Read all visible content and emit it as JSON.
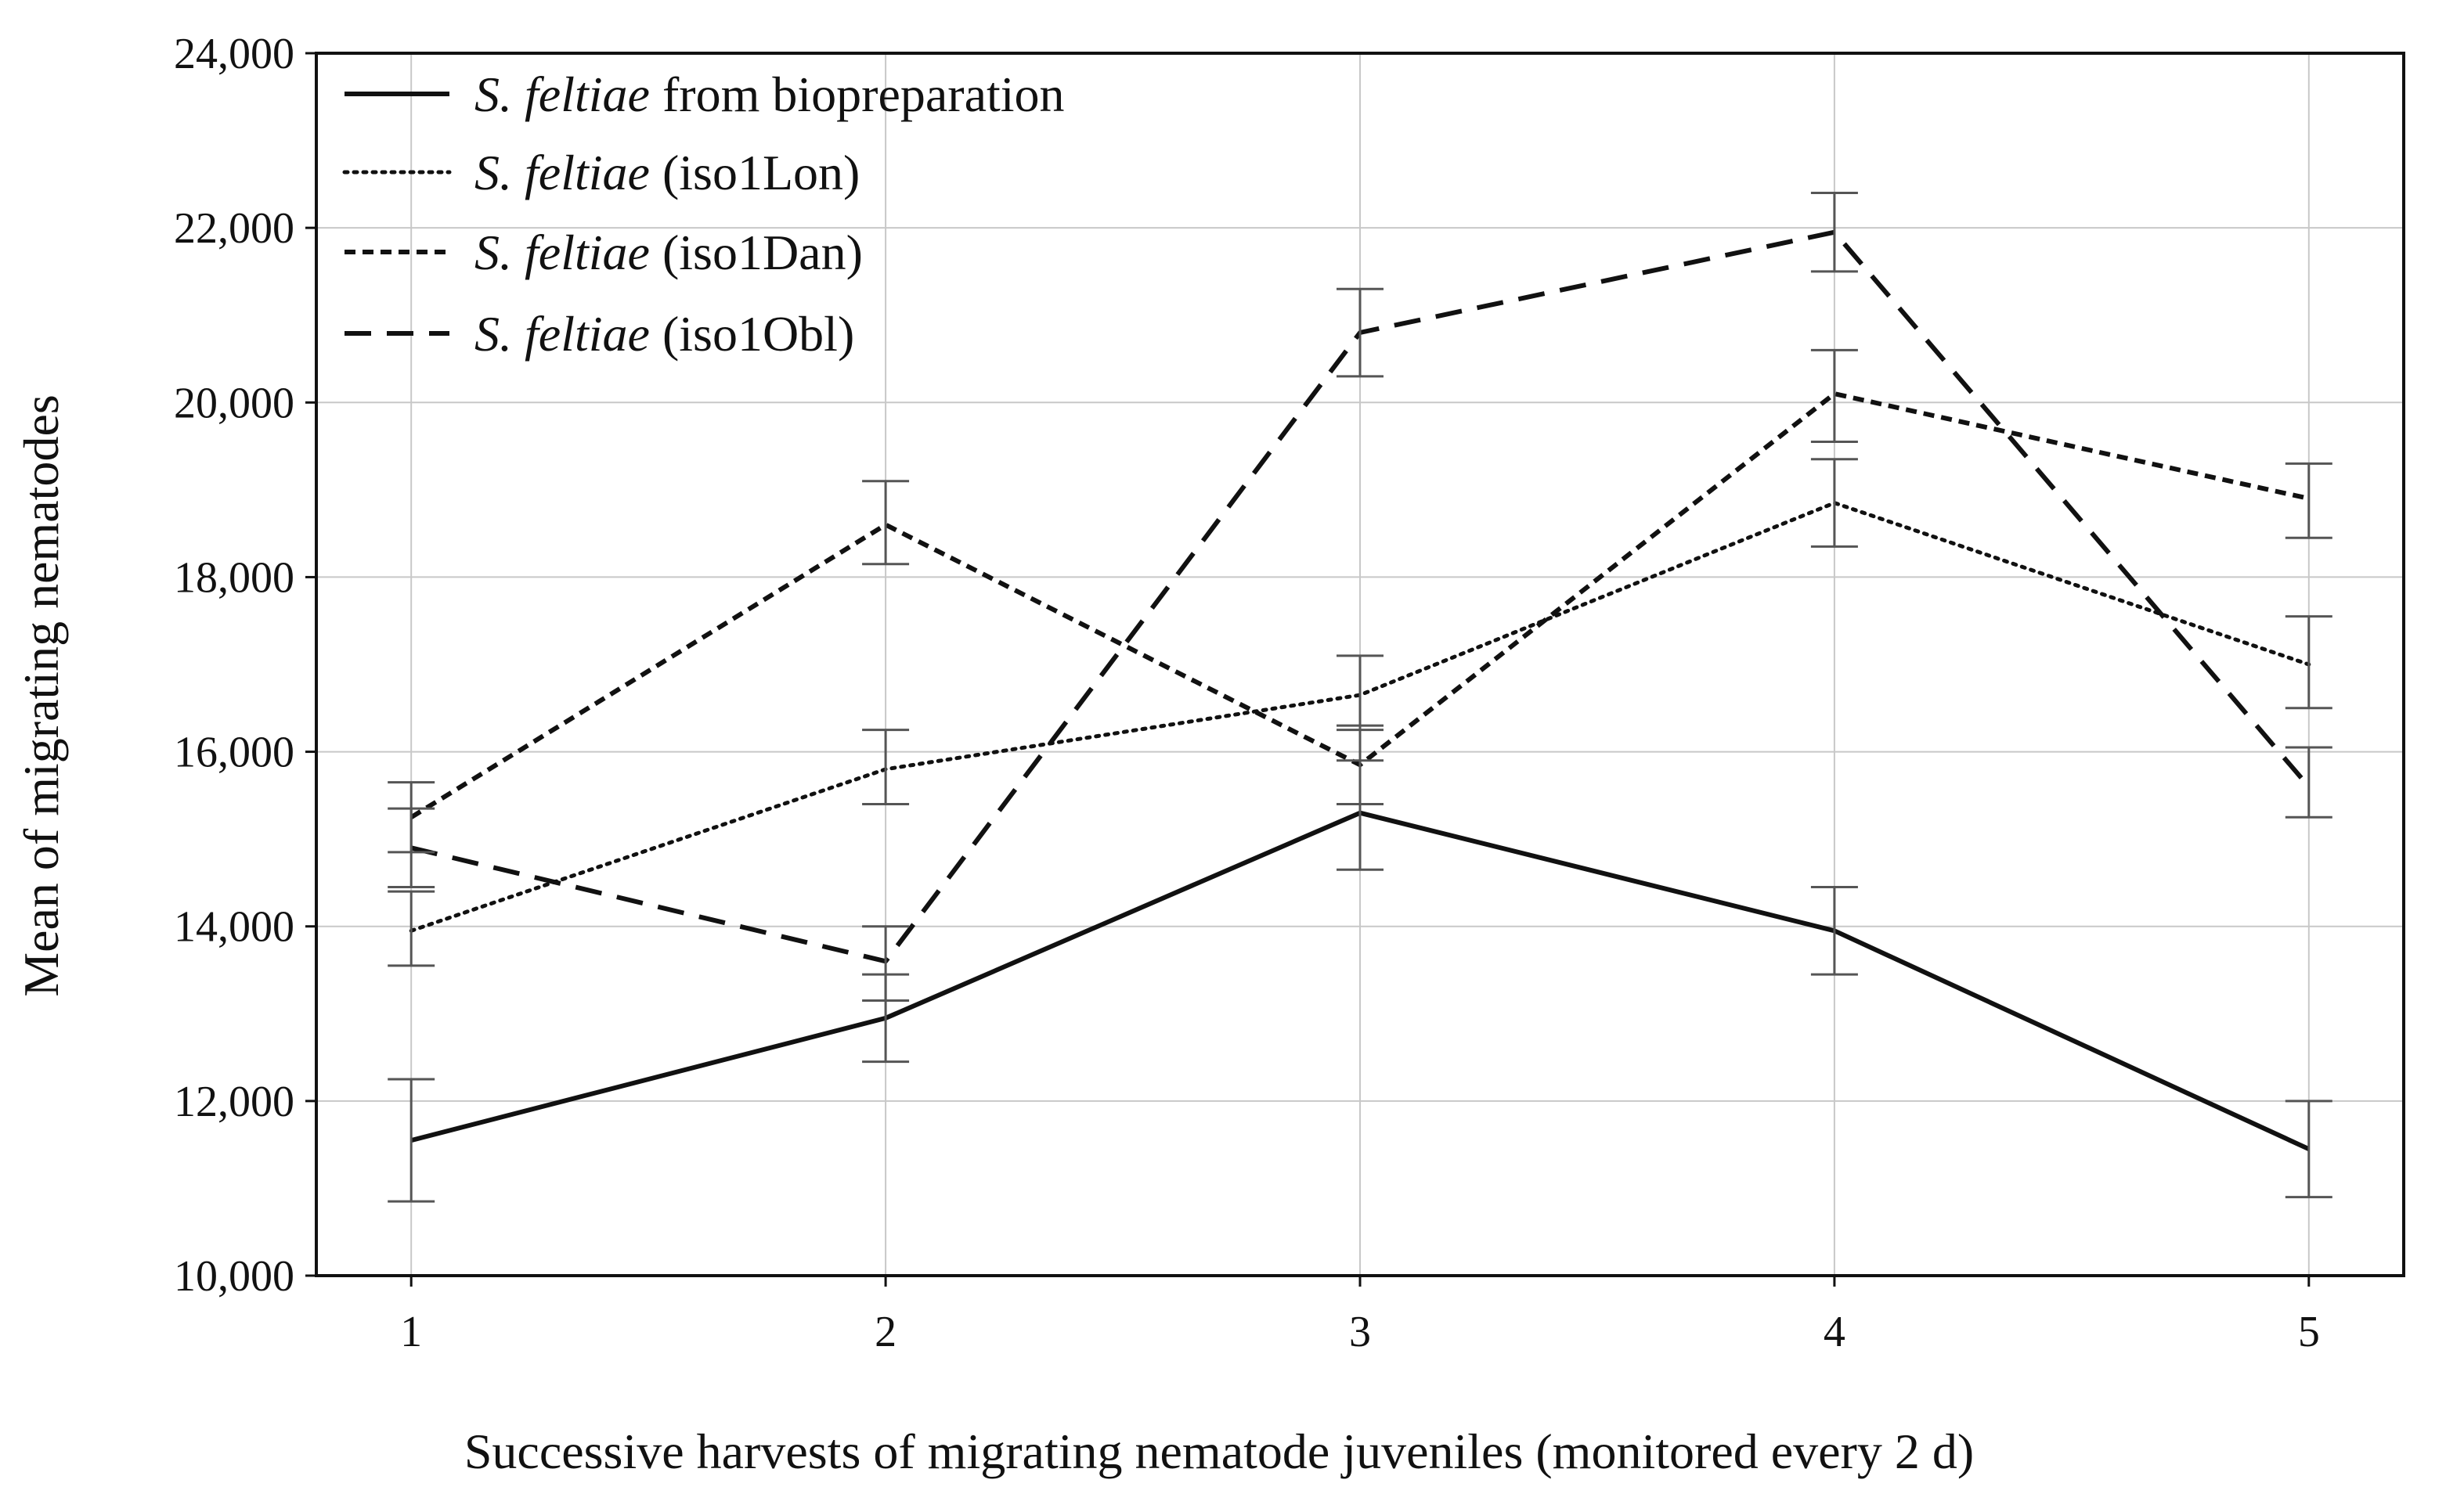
{
  "chart_data": {
    "type": "line",
    "title": "",
    "xlabel": "Successive harvests of migrating nematode juveniles (monitored every 2 d)",
    "ylabel": "Mean of migrating nematodes",
    "x": [
      1,
      2,
      3,
      4,
      5
    ],
    "x_tick_labels": [
      "1",
      "2",
      "3",
      "4",
      "5"
    ],
    "xlim": [
      0.8,
      5.2
    ],
    "ylim": [
      10000,
      24000
    ],
    "y_ticks": [
      10000,
      12000,
      14000,
      16000,
      18000,
      20000,
      22000,
      24000
    ],
    "y_tick_labels": [
      "10,000",
      "12,000",
      "14,000",
      "16,000",
      "18,000",
      "20,000",
      "22,000",
      "24,000"
    ],
    "grid": true,
    "legend_position": "top-left",
    "series": [
      {
        "name_italic": "S. feltiae",
        "name_rest": " from biopreparation",
        "style": "solid",
        "values": [
          11550,
          12950,
          15300,
          13950,
          11450
        ],
        "lower": [
          10850,
          12450,
          14650,
          13450,
          10900
        ],
        "upper": [
          12250,
          13450,
          15900,
          14450,
          12000
        ]
      },
      {
        "name_italic": "S. feltiae",
        "name_rest": " (iso1Lon)",
        "style": "dotted",
        "values": [
          13950,
          15800,
          16650,
          18850,
          17000
        ],
        "lower": [
          13550,
          15400,
          16250,
          18350,
          16500
        ],
        "upper": [
          14400,
          16250,
          17100,
          19350,
          17550
        ]
      },
      {
        "name_italic": "S. feltiae",
        "name_rest": " (iso1Dan)",
        "style": "short-dash",
        "values": [
          15250,
          18600,
          15850,
          20100,
          18900
        ],
        "lower": [
          14850,
          18150,
          15400,
          19550,
          18450
        ],
        "upper": [
          15650,
          19100,
          16300,
          20600,
          19300
        ]
      },
      {
        "name_italic": "S. feltiae",
        "name_rest": " (iso1Obl)",
        "style": "long-dash",
        "values": [
          14900,
          13600,
          20800,
          21950,
          15600
        ],
        "lower": [
          14450,
          13150,
          20300,
          21500,
          15250
        ],
        "upper": [
          15350,
          14000,
          21300,
          22400,
          16050
        ]
      }
    ]
  }
}
